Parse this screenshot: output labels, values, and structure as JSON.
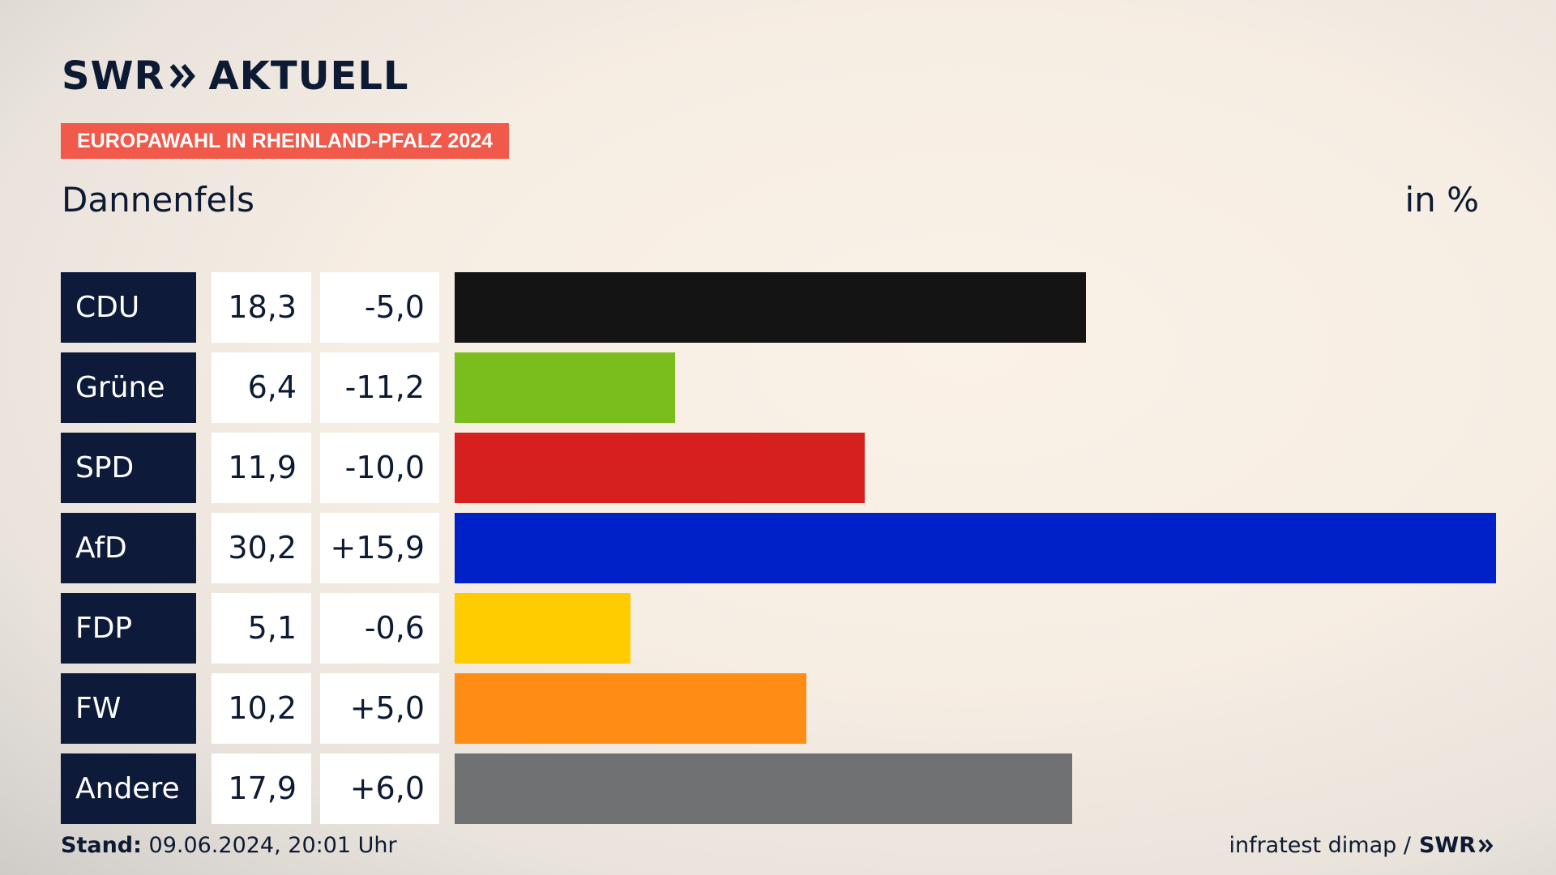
{
  "header": {
    "logo_left": "SWR",
    "logo_right": "AKTUELL",
    "tag": "EUROPAWAHL IN RHEINLAND-PFALZ 2024",
    "place": "Dannenfels",
    "unit": "in %"
  },
  "footer": {
    "stand_label": "Stand:",
    "stand_value": "09.06.2024, 20:01 Uhr",
    "source": "infratest dimap /",
    "brand": "SWR"
  },
  "chart_data": {
    "type": "bar",
    "orientation": "horizontal",
    "title": "Dannenfels",
    "unit": "in %",
    "categories": [
      "CDU",
      "Grüne",
      "SPD",
      "AfD",
      "FDP",
      "FW",
      "Andere"
    ],
    "values": [
      18.3,
      6.4,
      11.9,
      30.2,
      5.1,
      10.2,
      17.9
    ],
    "value_labels": [
      "18,3",
      "6,4",
      "11,9",
      "30,2",
      "5,1",
      "10,2",
      "17,9"
    ],
    "diff_labels": [
      "-5,0",
      "-11,2",
      "-10,0",
      "+15,9",
      "-0,6",
      "+5,0",
      "+6,0"
    ],
    "colors": [
      "#141414",
      "#7abe1e",
      "#d6201f",
      "#0020c8",
      "#ffcc00",
      "#ff8c14",
      "#707173"
    ],
    "grid": false
  }
}
